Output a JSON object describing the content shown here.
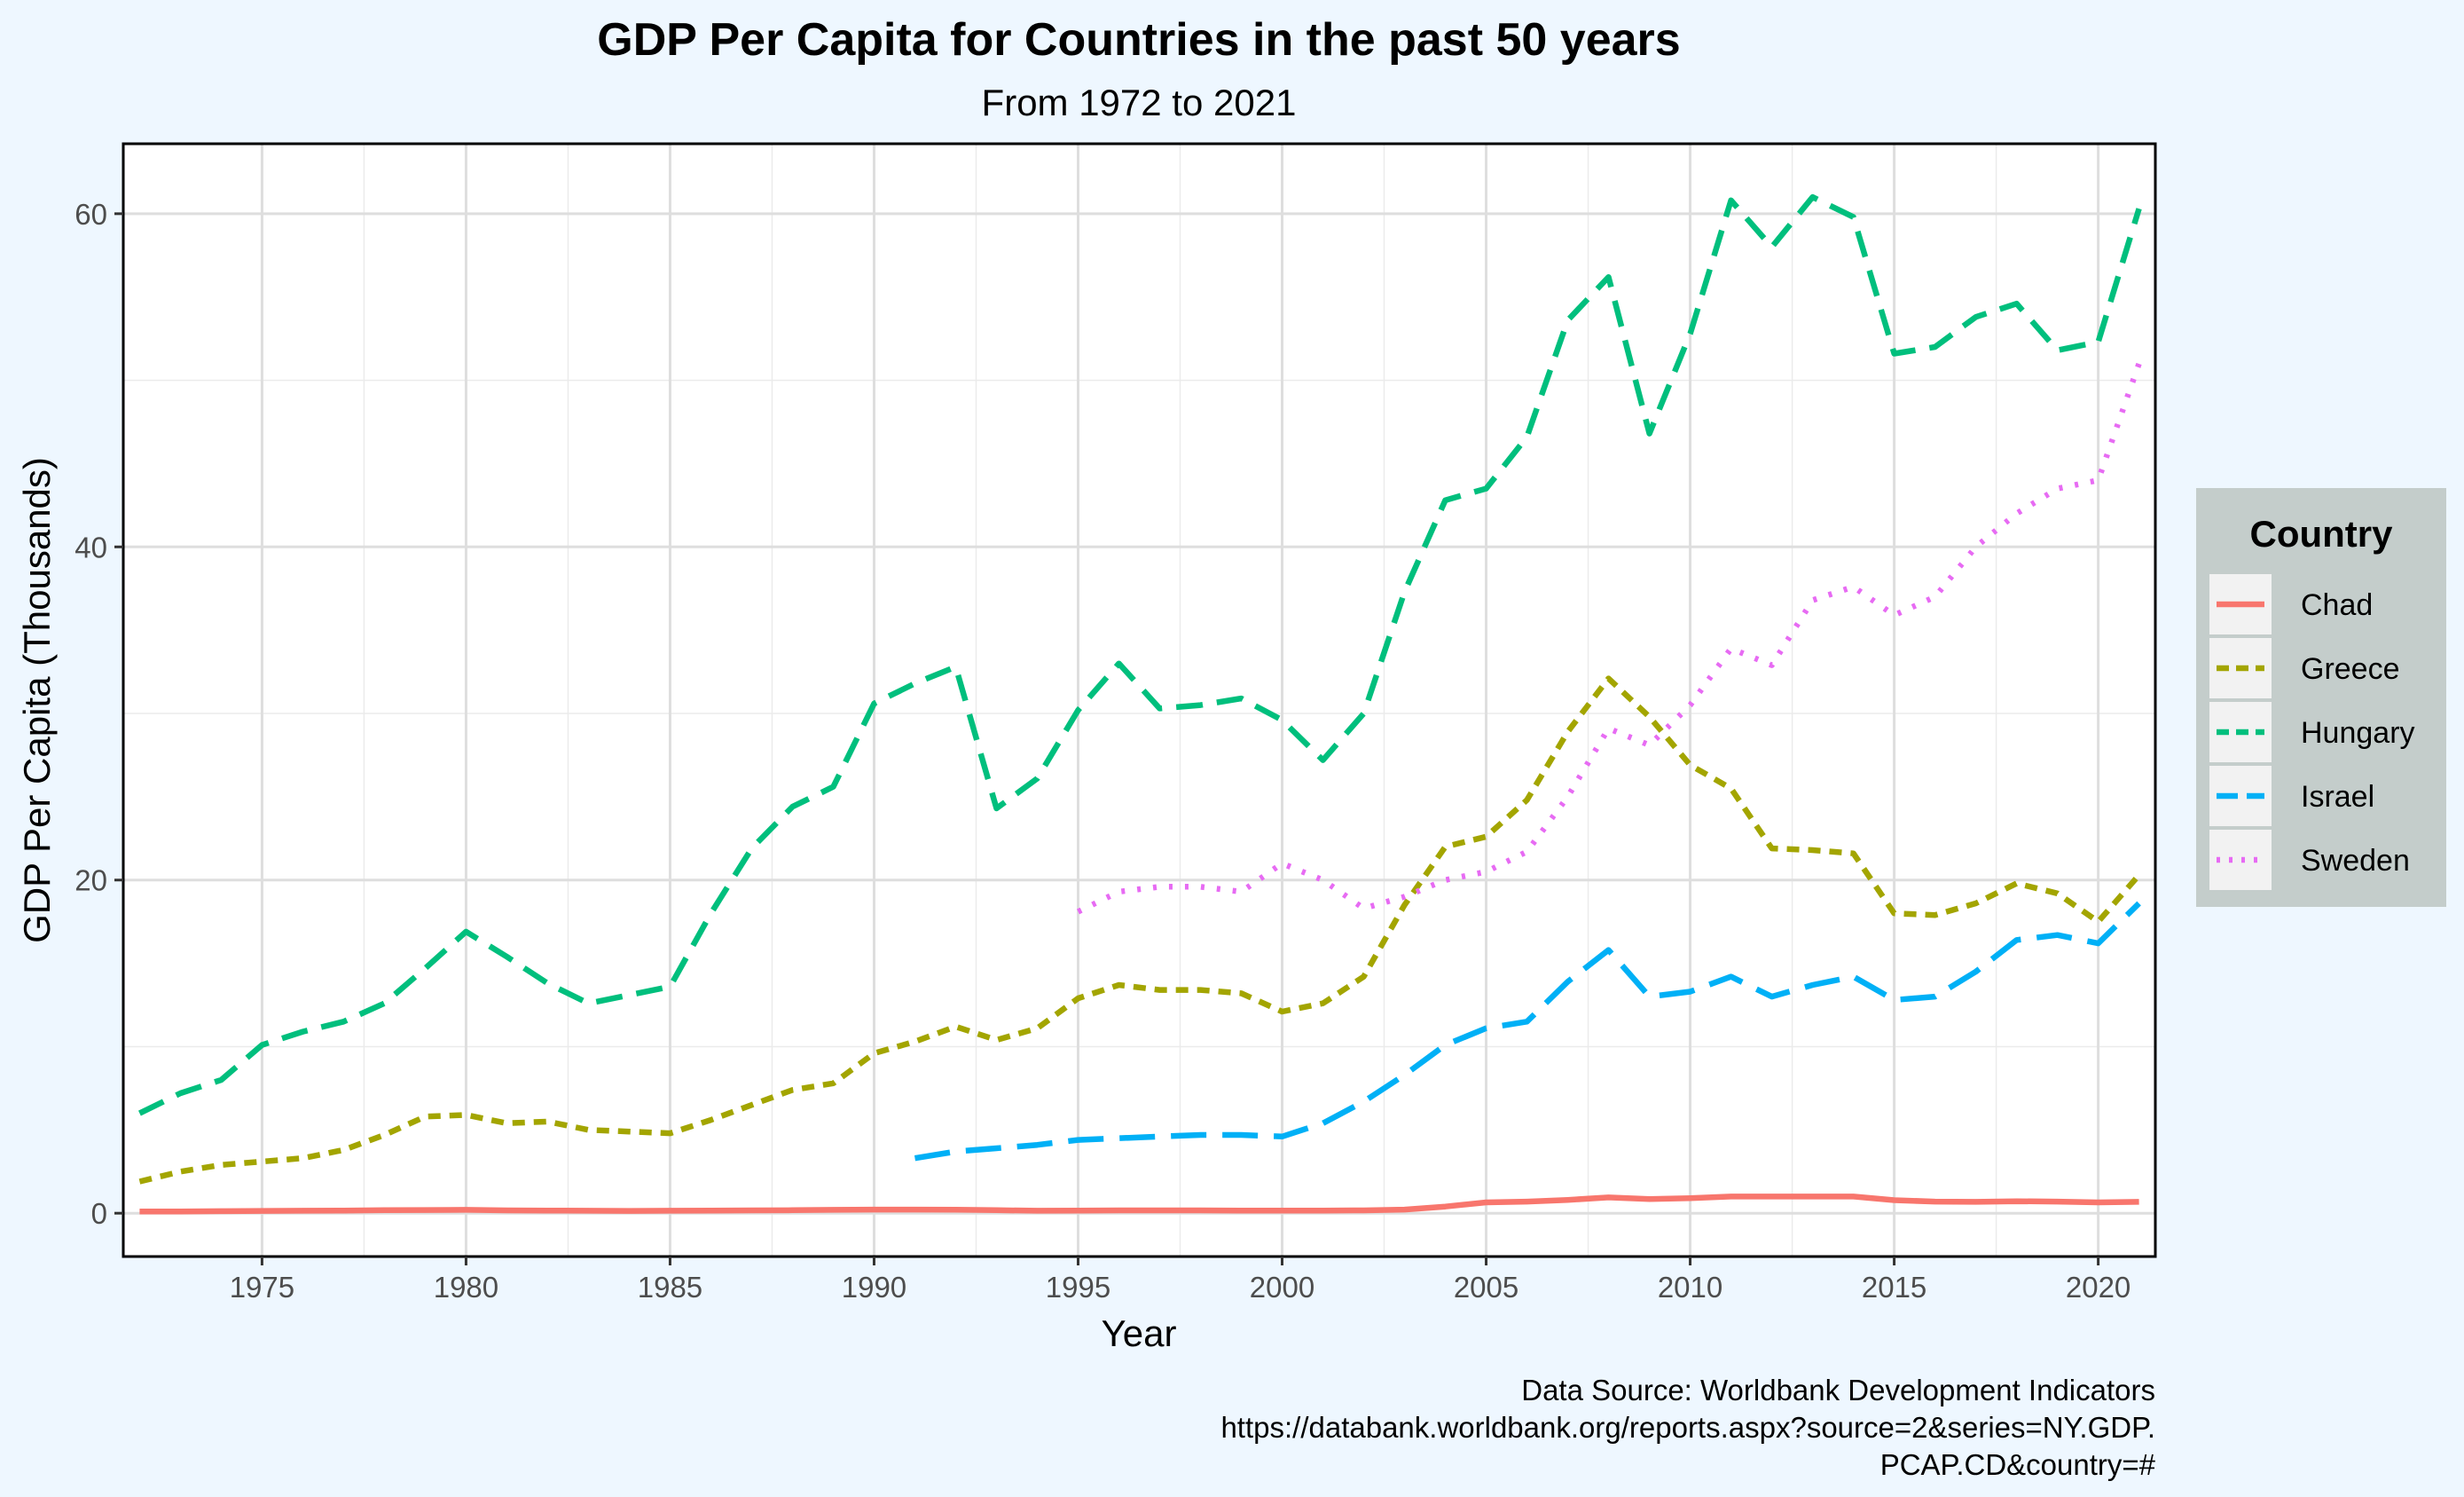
{
  "chart_data": {
    "type": "line",
    "title": "GDP Per Capita for Countries in the past 50 years",
    "subtitle": "From 1972 to 2021",
    "xlabel": "Year",
    "ylabel": "GDP Per Capita (Thousands)",
    "xlim": [
      1971.6,
      2021.4
    ],
    "ylim": [
      -2.6,
      64.2
    ],
    "x_ticks": [
      1975,
      1980,
      1985,
      1990,
      1995,
      2000,
      2005,
      2010,
      2015,
      2020
    ],
    "y_ticks": [
      0,
      20,
      40,
      60
    ],
    "grid": true,
    "legend": {
      "title": "Country",
      "position": "right",
      "entries": [
        "Chad",
        "Greece",
        "Hungary",
        "Israel",
        "Sweden"
      ]
    },
    "caption": [
      "Data Source: Worldbank Development Indicators",
      "https://databank.worldbank.org/reports.aspx?source=2&series=NY.GDP.",
      "PCAP.CD&country=#"
    ],
    "series": [
      {
        "name": "Chad",
        "color": "#f8766d",
        "line_style": "solid",
        "x": [
          1972,
          1973,
          1974,
          1975,
          1976,
          1977,
          1978,
          1979,
          1980,
          1981,
          1982,
          1983,
          1984,
          1985,
          1986,
          1987,
          1988,
          1989,
          1990,
          1991,
          1992,
          1993,
          1994,
          1995,
          1996,
          1997,
          1998,
          1999,
          2000,
          2001,
          2002,
          2003,
          2004,
          2005,
          2006,
          2007,
          2008,
          2009,
          2010,
          2011,
          2012,
          2013,
          2014,
          2015,
          2016,
          2017,
          2018,
          2019,
          2020,
          2021
        ],
        "y": [
          0.1,
          0.1,
          0.12,
          0.14,
          0.15,
          0.16,
          0.18,
          0.19,
          0.2,
          0.17,
          0.16,
          0.15,
          0.14,
          0.15,
          0.16,
          0.17,
          0.18,
          0.2,
          0.22,
          0.22,
          0.21,
          0.18,
          0.15,
          0.16,
          0.17,
          0.17,
          0.17,
          0.16,
          0.16,
          0.16,
          0.17,
          0.22,
          0.4,
          0.65,
          0.7,
          0.8,
          0.95,
          0.85,
          0.9,
          1.0,
          1.0,
          1.0,
          1.0,
          0.78,
          0.7,
          0.68,
          0.72,
          0.7,
          0.65,
          0.68
        ]
      },
      {
        "name": "Greece",
        "color": "#a3a500",
        "line_style": "dotted-dash",
        "x": [
          1972,
          1973,
          1974,
          1975,
          1976,
          1977,
          1978,
          1979,
          1980,
          1981,
          1982,
          1983,
          1984,
          1985,
          1986,
          1987,
          1988,
          1989,
          1990,
          1991,
          1992,
          1993,
          1994,
          1995,
          1996,
          1997,
          1998,
          1999,
          2000,
          2001,
          2002,
          2003,
          2004,
          2005,
          2006,
          2007,
          2008,
          2009,
          2010,
          2011,
          2012,
          2013,
          2014,
          2015,
          2016,
          2017,
          2018,
          2019,
          2020,
          2021
        ],
        "y": [
          1.9,
          2.5,
          2.9,
          3.1,
          3.3,
          3.8,
          4.7,
          5.8,
          5.9,
          5.4,
          5.5,
          5.0,
          4.9,
          4.8,
          5.6,
          6.5,
          7.4,
          7.8,
          9.6,
          10.3,
          11.2,
          10.4,
          11.1,
          12.9,
          13.7,
          13.4,
          13.4,
          13.2,
          12.1,
          12.6,
          14.2,
          18.5,
          22.0,
          22.6,
          24.8,
          28.9,
          32.1,
          29.8,
          26.9,
          25.5,
          21.9,
          21.8,
          21.6,
          18.0,
          17.9,
          18.6,
          19.8,
          19.2,
          17.5,
          20.3
        ]
      },
      {
        "name": "Hungary",
        "color": "#00bf7d",
        "line_style": "dashed",
        "x": [
          1972,
          1973,
          1974,
          1975,
          1976,
          1977,
          1978,
          1979,
          1980,
          1981,
          1982,
          1983,
          1984,
          1985,
          1986,
          1987,
          1988,
          1989,
          1990,
          1991,
          1992,
          1993,
          1994,
          1995,
          1996,
          1997,
          1998,
          1999,
          2000,
          2001,
          2002,
          2003,
          2004,
          2005,
          2006,
          2007,
          2008,
          2009,
          2010,
          2011,
          2012,
          2013,
          2014,
          2015,
          2016,
          2017,
          2018,
          2019,
          2020,
          2021
        ],
        "y": [
          6.0,
          7.2,
          8.0,
          10.1,
          10.9,
          11.5,
          12.6,
          14.7,
          16.9,
          15.4,
          13.8,
          12.6,
          13.1,
          13.6,
          18.0,
          21.9,
          24.4,
          25.6,
          30.6,
          31.8,
          32.8,
          24.3,
          26.1,
          30.2,
          33.0,
          30.3,
          30.5,
          30.9,
          29.6,
          27.2,
          30.0,
          37.3,
          42.8,
          43.5,
          46.6,
          53.6,
          56.2,
          46.8,
          52.8,
          60.8,
          58.0,
          61.0,
          59.8,
          51.6,
          52.0,
          53.8,
          54.6,
          51.8,
          52.3,
          60.3
        ]
      },
      {
        "name": "Israel",
        "color": "#00b0f6",
        "line_style": "long-dash",
        "x": [
          1991,
          1992,
          1993,
          1994,
          1995,
          1996,
          1997,
          1998,
          1999,
          2000,
          2001,
          2002,
          2003,
          2004,
          2005,
          2006,
          2007,
          2008,
          2009,
          2010,
          2011,
          2012,
          2013,
          2014,
          2015,
          2016,
          2017,
          2018,
          2019,
          2020,
          2021
        ],
        "y": [
          3.3,
          3.7,
          3.9,
          4.1,
          4.4,
          4.5,
          4.6,
          4.7,
          4.7,
          4.6,
          5.4,
          6.7,
          8.3,
          10.1,
          11.1,
          11.5,
          13.9,
          15.8,
          13.0,
          13.3,
          14.2,
          13.0,
          13.7,
          14.2,
          12.8,
          13.0,
          14.5,
          16.4,
          16.7,
          16.2,
          18.6
        ]
      },
      {
        "name": "Sweden",
        "color": "#e76bf3",
        "line_style": "dotted",
        "x": [
          1995,
          1996,
          1997,
          1998,
          1999,
          2000,
          2001,
          2002,
          2003,
          2004,
          2005,
          2006,
          2007,
          2008,
          2009,
          2010,
          2011,
          2012,
          2013,
          2014,
          2015,
          2016,
          2017,
          2018,
          2019,
          2020,
          2021
        ],
        "y": [
          18.1,
          19.3,
          19.6,
          19.6,
          19.3,
          21.0,
          20.0,
          18.3,
          19.0,
          20.0,
          20.5,
          21.7,
          25.0,
          29.1,
          28.1,
          30.5,
          33.9,
          32.9,
          36.8,
          37.6,
          35.9,
          37.0,
          40.0,
          42.0,
          43.5,
          44.0,
          51.0
        ]
      }
    ]
  }
}
